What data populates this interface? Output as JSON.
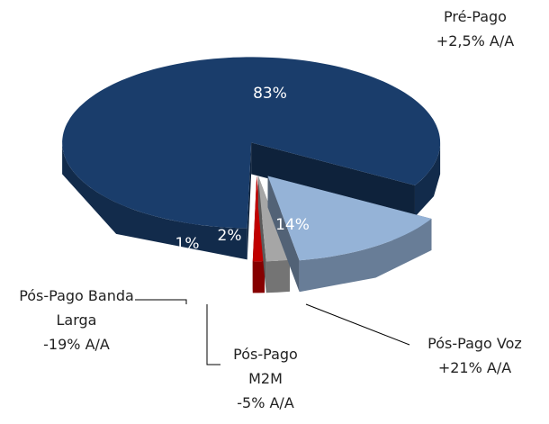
{
  "chart_data": {
    "type": "pie3d",
    "categories": [
      "Pré-Pago",
      "Pós-Pago Voz",
      "Pós-Pago M2M",
      "Pós-Pago Banda Larga"
    ],
    "values": [
      83,
      14,
      2,
      1
    ],
    "value_labels": [
      "83%",
      "14%",
      "2%",
      "1%"
    ],
    "annotations": [
      "+2,5% A/A",
      "+21% A/A",
      "-5% A/A",
      "-19% A/A"
    ],
    "colors": [
      "#1a3d6b",
      "#95b3d7",
      "#a6a6a6",
      "#c00000"
    ]
  }
}
